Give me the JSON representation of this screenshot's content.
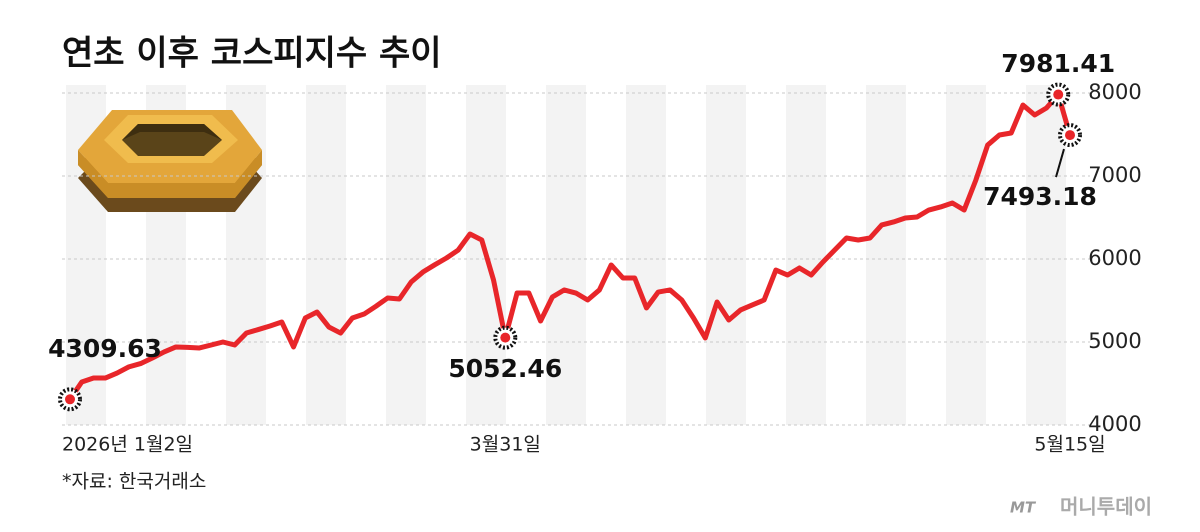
{
  "chart_data": {
    "type": "line",
    "title": "연초 이후 코스피지수 추이",
    "source": "*자료: 한국거래소",
    "logo": {
      "mark": "MT",
      "name": "머니투데이"
    },
    "categories": [
      "2026년 1월2일",
      null,
      null,
      null,
      null,
      null,
      null,
      null,
      null,
      null,
      null,
      null,
      null,
      null,
      null,
      null,
      null,
      null,
      null,
      null,
      null,
      null,
      null,
      null,
      null,
      null,
      null,
      null,
      null,
      null,
      null,
      null,
      null,
      null,
      null,
      null,
      null,
      "3월31일",
      null,
      null,
      null,
      null,
      null,
      null,
      null,
      null,
      null,
      null,
      null,
      null,
      null,
      null,
      null,
      null,
      null,
      null,
      null,
      null,
      null,
      null,
      null,
      null,
      null,
      null,
      null,
      null,
      null,
      null,
      null,
      null,
      null,
      null,
      null,
      null,
      null,
      null,
      null,
      null,
      null,
      null,
      null,
      null,
      null,
      null,
      null,
      "5월15일"
    ],
    "series": [
      {
        "name": "코스피지수",
        "color": "#e8262a",
        "values": [
          4309.63,
          4518,
          4566,
          4566,
          4626,
          4700,
          4740,
          4807,
          4880,
          4940,
          4935,
          4928,
          4964,
          5000,
          4964,
          5108,
          5150,
          5193,
          5241,
          4940,
          5289,
          5361,
          5181,
          5108,
          5289,
          5337,
          5430,
          5530,
          5518,
          5723,
          5843,
          5930,
          6012,
          6108,
          6301,
          6229,
          5747,
          5052.46,
          5590,
          5590,
          5253,
          5542,
          5627,
          5590,
          5506,
          5627,
          5928,
          5771,
          5771,
          5410,
          5602,
          5627,
          5506,
          5289,
          5048,
          5482,
          5265,
          5386,
          5446,
          5506,
          5867,
          5807,
          5892,
          5807,
          5964,
          6108,
          6253,
          6229,
          6253,
          6410,
          6446,
          6494,
          6506,
          6590,
          6627,
          6675,
          6590,
          6952,
          7373,
          7494,
          7518,
          7855,
          7735,
          7819,
          7981.41,
          7493.18
        ]
      }
    ],
    "ylim": [
      4000,
      8000
    ],
    "yticks": [
      4000,
      5000,
      6000,
      7000,
      8000
    ],
    "grid": true
  }
}
